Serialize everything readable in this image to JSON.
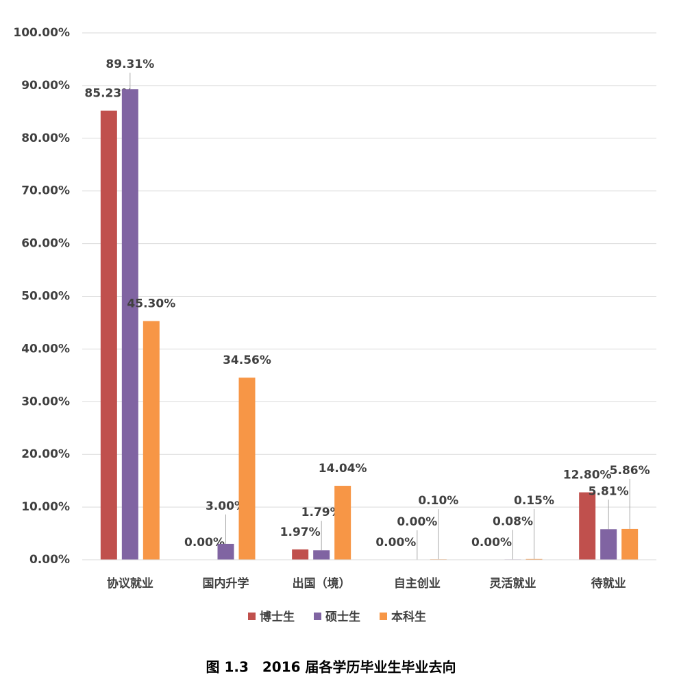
{
  "chart_data": {
    "type": "bar",
    "title": "图 1.3　2016 届各学历毕业生毕业去向",
    "categories": [
      "协议就业",
      "国内升学",
      "出国（境）",
      "自主创业",
      "灵活就业",
      "待就业"
    ],
    "series": [
      {
        "name": "博士生",
        "color": "#c0504d",
        "values": [
          85.23,
          0.0,
          1.97,
          0.0,
          0.0,
          12.8
        ],
        "value_labels": [
          "85.23%",
          "0.00%",
          "1.97%",
          "0.00%",
          "0.00%",
          "12.80%"
        ]
      },
      {
        "name": "硕士生",
        "color": "#8064a2",
        "values": [
          89.31,
          3.0,
          1.79,
          0.0,
          0.08,
          5.81
        ],
        "value_labels": [
          "89.31%",
          "3.00%",
          "1.79%",
          "0.00%",
          "0.08%",
          "5.81%"
        ]
      },
      {
        "name": "本科生",
        "color": "#f79646",
        "values": [
          45.3,
          34.56,
          14.04,
          0.1,
          0.15,
          5.86
        ],
        "value_labels": [
          "45.30%",
          "34.56%",
          "14.04%",
          "0.10%",
          "0.15%",
          "5.86%"
        ]
      }
    ],
    "ylim": [
      0,
      100
    ],
    "yticks": [
      {
        "value": 0,
        "label": "0.00%"
      },
      {
        "value": 10,
        "label": "10.00%"
      },
      {
        "value": 20,
        "label": "20.00%"
      },
      {
        "value": 30,
        "label": "30.00%"
      },
      {
        "value": 40,
        "label": "40.00%"
      },
      {
        "value": 50,
        "label": "50.00%"
      },
      {
        "value": 60,
        "label": "60.00%"
      },
      {
        "value": 70,
        "label": "70.00%"
      },
      {
        "value": 80,
        "label": "80.00%"
      },
      {
        "value": 90,
        "label": "90.00%"
      },
      {
        "value": 100,
        "label": "100.00%"
      }
    ],
    "grid": true,
    "legend": "bottom"
  }
}
